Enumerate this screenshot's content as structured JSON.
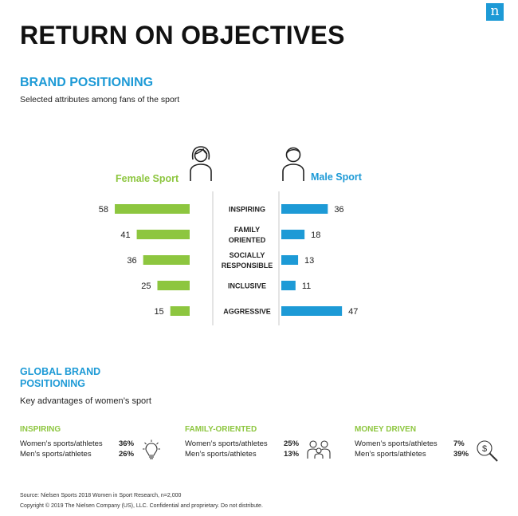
{
  "header": {
    "logo_letter": "n",
    "title": "RETURN ON OBJECTIVES"
  },
  "brand": {
    "title": "BRAND POSITIONING",
    "subtitle": "Selected attributes among fans of the sport",
    "female_label": "Female Sport",
    "male_label": "Male Sport"
  },
  "colors": {
    "female": "#8dc63f",
    "male": "#1d9ad6",
    "accent": "#1d9ad6"
  },
  "chart_data": {
    "type": "bar",
    "orientation": "horizontal-diverging",
    "categories": [
      [
        "INSPIRING"
      ],
      [
        "FAMILY",
        "ORIENTED"
      ],
      [
        "SOCIALLY",
        "RESPONSIBLE"
      ],
      [
        "INCLUSIVE"
      ],
      [
        "AGGRESSIVE"
      ]
    ],
    "series": [
      {
        "name": "Female Sport",
        "values": [
          58,
          41,
          36,
          25,
          15
        ]
      },
      {
        "name": "Male Sport",
        "values": [
          36,
          18,
          13,
          11,
          47
        ]
      }
    ],
    "title": "BRAND POSITIONING",
    "subtitle": "Selected attributes among fans of the sport",
    "grid": false
  },
  "global": {
    "title": "GLOBAL BRAND POSITIONING",
    "subtitle": "Key advantages of women’s sport",
    "cards": [
      {
        "title": "INSPIRING",
        "rows": [
          {
            "label": "Women’s sports/athletes",
            "value": "36%"
          },
          {
            "label": "Men’s sports/athletes",
            "value": "26%"
          }
        ],
        "icon": "lightbulb-icon"
      },
      {
        "title": "FAMILY-ORIENTED",
        "rows": [
          {
            "label": "Women’s sports/athletes",
            "value": "25%"
          },
          {
            "label": "Men’s sports/athletes",
            "value": "13%"
          }
        ],
        "icon": "family-icon"
      },
      {
        "title": "MONEY DRIVEN",
        "rows": [
          {
            "label": "Women’s sports/athletes",
            "value": "7%"
          },
          {
            "label": "Men’s sports/athletes",
            "value": "39%"
          }
        ],
        "icon": "money-magnifier-icon"
      }
    ]
  },
  "footer": {
    "source": "Source: Nielsen Sports 2018 Women in Sport Research, n=2,000",
    "copyright": "Copyright © 2019 The Nielsen Company (US), LLC. Confidential and proprietary. Do not distribute."
  }
}
